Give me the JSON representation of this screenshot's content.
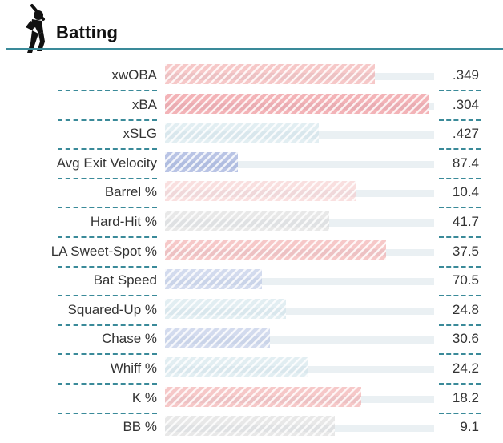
{
  "title": "Batting",
  "icon": "batter-silhouette-icon",
  "colors": {
    "accent": "#3a8a99",
    "bar_red": "#e8747c",
    "bar_pink": "#ef9a9a",
    "bar_light_pink": "#f3c4c4",
    "bar_blue": "#7f93cf",
    "bar_light_blue": "#aebde0",
    "bar_pale_blue": "#c9dfe6",
    "bar_gray": "#d4d4d4",
    "track": "#eaf0f3"
  },
  "chart_data": {
    "type": "bar",
    "orientation": "horizontal",
    "value_scale": "percentile",
    "xlim": [
      0,
      100
    ],
    "categories": [
      "xwOBA",
      "xBA",
      "xSLG",
      "Avg Exit Velocity",
      "Barrel %",
      "Hard-Hit %",
      "LA Sweet-Spot %",
      "Bat Speed",
      "Squared-Up %",
      "Chase %",
      "Whiff %",
      "K %",
      "BB %"
    ],
    "value_labels": [
      ".349",
      ".304",
      ".427",
      "87.4",
      "10.4",
      "41.7",
      "37.5",
      "70.5",
      "24.8",
      "30.6",
      "24.2",
      "18.2",
      "9.1"
    ],
    "percentiles": [
      78,
      98,
      57,
      27,
      71,
      61,
      82,
      36,
      45,
      39,
      53,
      73,
      63
    ],
    "bar_colors": [
      "#ef9a9a",
      "#e8747c",
      "#c9dfe6",
      "#7f93cf",
      "#f3c4c4",
      "#d4d4d4",
      "#ef9a9a",
      "#aebde0",
      "#c9dfe6",
      "#aebde0",
      "#c9dfe6",
      "#ef9a9a",
      "#d4d4d4"
    ]
  }
}
